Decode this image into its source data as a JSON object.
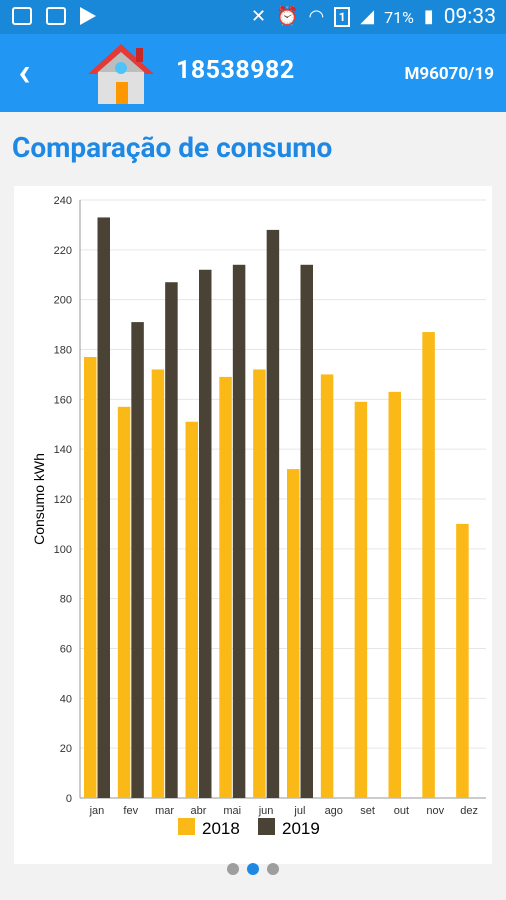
{
  "status_bar": {
    "battery": "71%",
    "time": "09:33",
    "sim_slot": "1",
    "icons": [
      "image-icon",
      "voicemail-icon",
      "play-store-icon",
      "mute-icon",
      "alarm-icon",
      "wifi-icon",
      "sim-icon",
      "signal-icon",
      "battery-charging-icon"
    ]
  },
  "app_bar": {
    "title": "18538982",
    "code": "M96070/19",
    "back_icon": "back-arrow-icon",
    "house_icon": "house-icon"
  },
  "section": {
    "title": "Comparação de consumo"
  },
  "colors": {
    "primary": "#2196f3",
    "status": "#1a88d8",
    "series2018": "#fbb917",
    "series2019": "#4a4234",
    "accent": "#1e88e5"
  },
  "chart_data": {
    "type": "bar",
    "ylabel": "Consumo kWh",
    "ylim": [
      0,
      240
    ],
    "yticks": [
      "0",
      "20",
      "40",
      "60",
      "80",
      "100",
      "120",
      "140",
      "160",
      "180",
      "200",
      "220",
      "240"
    ],
    "categories": [
      "jan",
      "fev",
      "mar",
      "abr",
      "mai",
      "jun",
      "jul",
      "ago",
      "set",
      "out",
      "nov",
      "dez"
    ],
    "series": [
      {
        "name": "2018",
        "values": [
          177,
          157,
          172,
          151,
          169,
          172,
          132,
          170,
          159,
          163,
          187,
          110
        ]
      },
      {
        "name": "2019",
        "values": [
          233,
          191,
          207,
          212,
          214,
          228,
          214,
          null,
          null,
          null,
          null,
          null
        ]
      }
    ],
    "grid": true,
    "legend": "bottom"
  },
  "pager": {
    "count": 3,
    "active": 1
  }
}
